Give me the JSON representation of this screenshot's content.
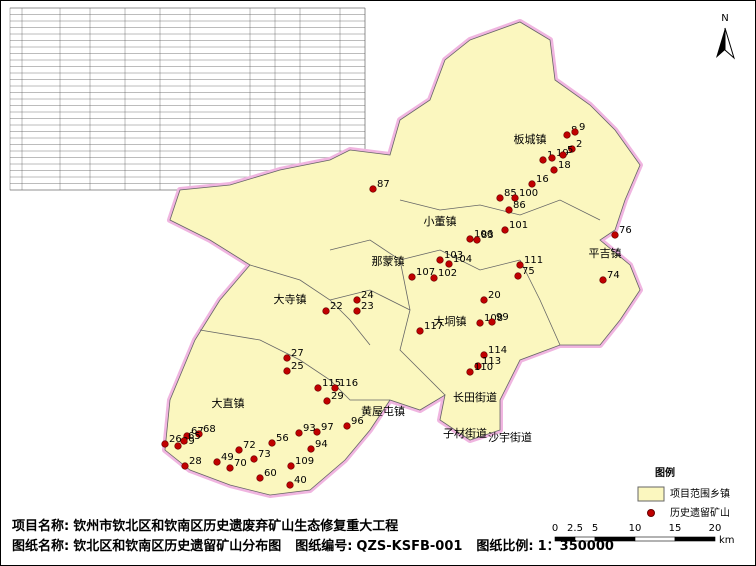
{
  "map": {
    "north": "N",
    "towns": [
      "板城镇",
      "小董镇",
      "那蒙镇",
      "平吉镇",
      "大寺镇",
      "大垌镇",
      "大直镇",
      "黄屋屯镇",
      "长田街道",
      "子材街道",
      "沙宇街道"
    ],
    "mines": [
      "8",
      "9",
      "2",
      "1",
      "19",
      "5",
      "18",
      "16",
      "85",
      "100",
      "86",
      "101",
      "106",
      "83",
      "103",
      "104",
      "102",
      "107",
      "87",
      "76",
      "111",
      "75",
      "74",
      "20",
      "108",
      "99",
      "117",
      "114",
      "113",
      "24",
      "23",
      "22",
      "27",
      "25",
      "115",
      "116",
      "29",
      "96",
      "97",
      "93",
      "94",
      "109",
      "56",
      "72",
      "73",
      "70",
      "49",
      "40",
      "60",
      "67",
      "68",
      "26",
      "39",
      "65",
      "28",
      "110"
    ],
    "legend": {
      "title": "图例",
      "items": [
        "项目范围乡镇",
        "历史遗留矿山"
      ]
    },
    "scale": {
      "ticks": [
        0,
        2.5,
        5,
        10,
        15,
        20
      ],
      "unit": "km"
    },
    "footer": {
      "project_label": "项目名称:",
      "project": "钦州市钦北区和钦南区历史遗废弃矿山生态修复重大工程",
      "drawing_label": "图纸名称:",
      "drawing": "钦北区和钦南区历史遗留矿山分布图",
      "code_label": "图纸编号:",
      "code": "QZS-KSFB-001",
      "ratio_label": "图纸比例:",
      "ratio": "1：350000"
    }
  }
}
